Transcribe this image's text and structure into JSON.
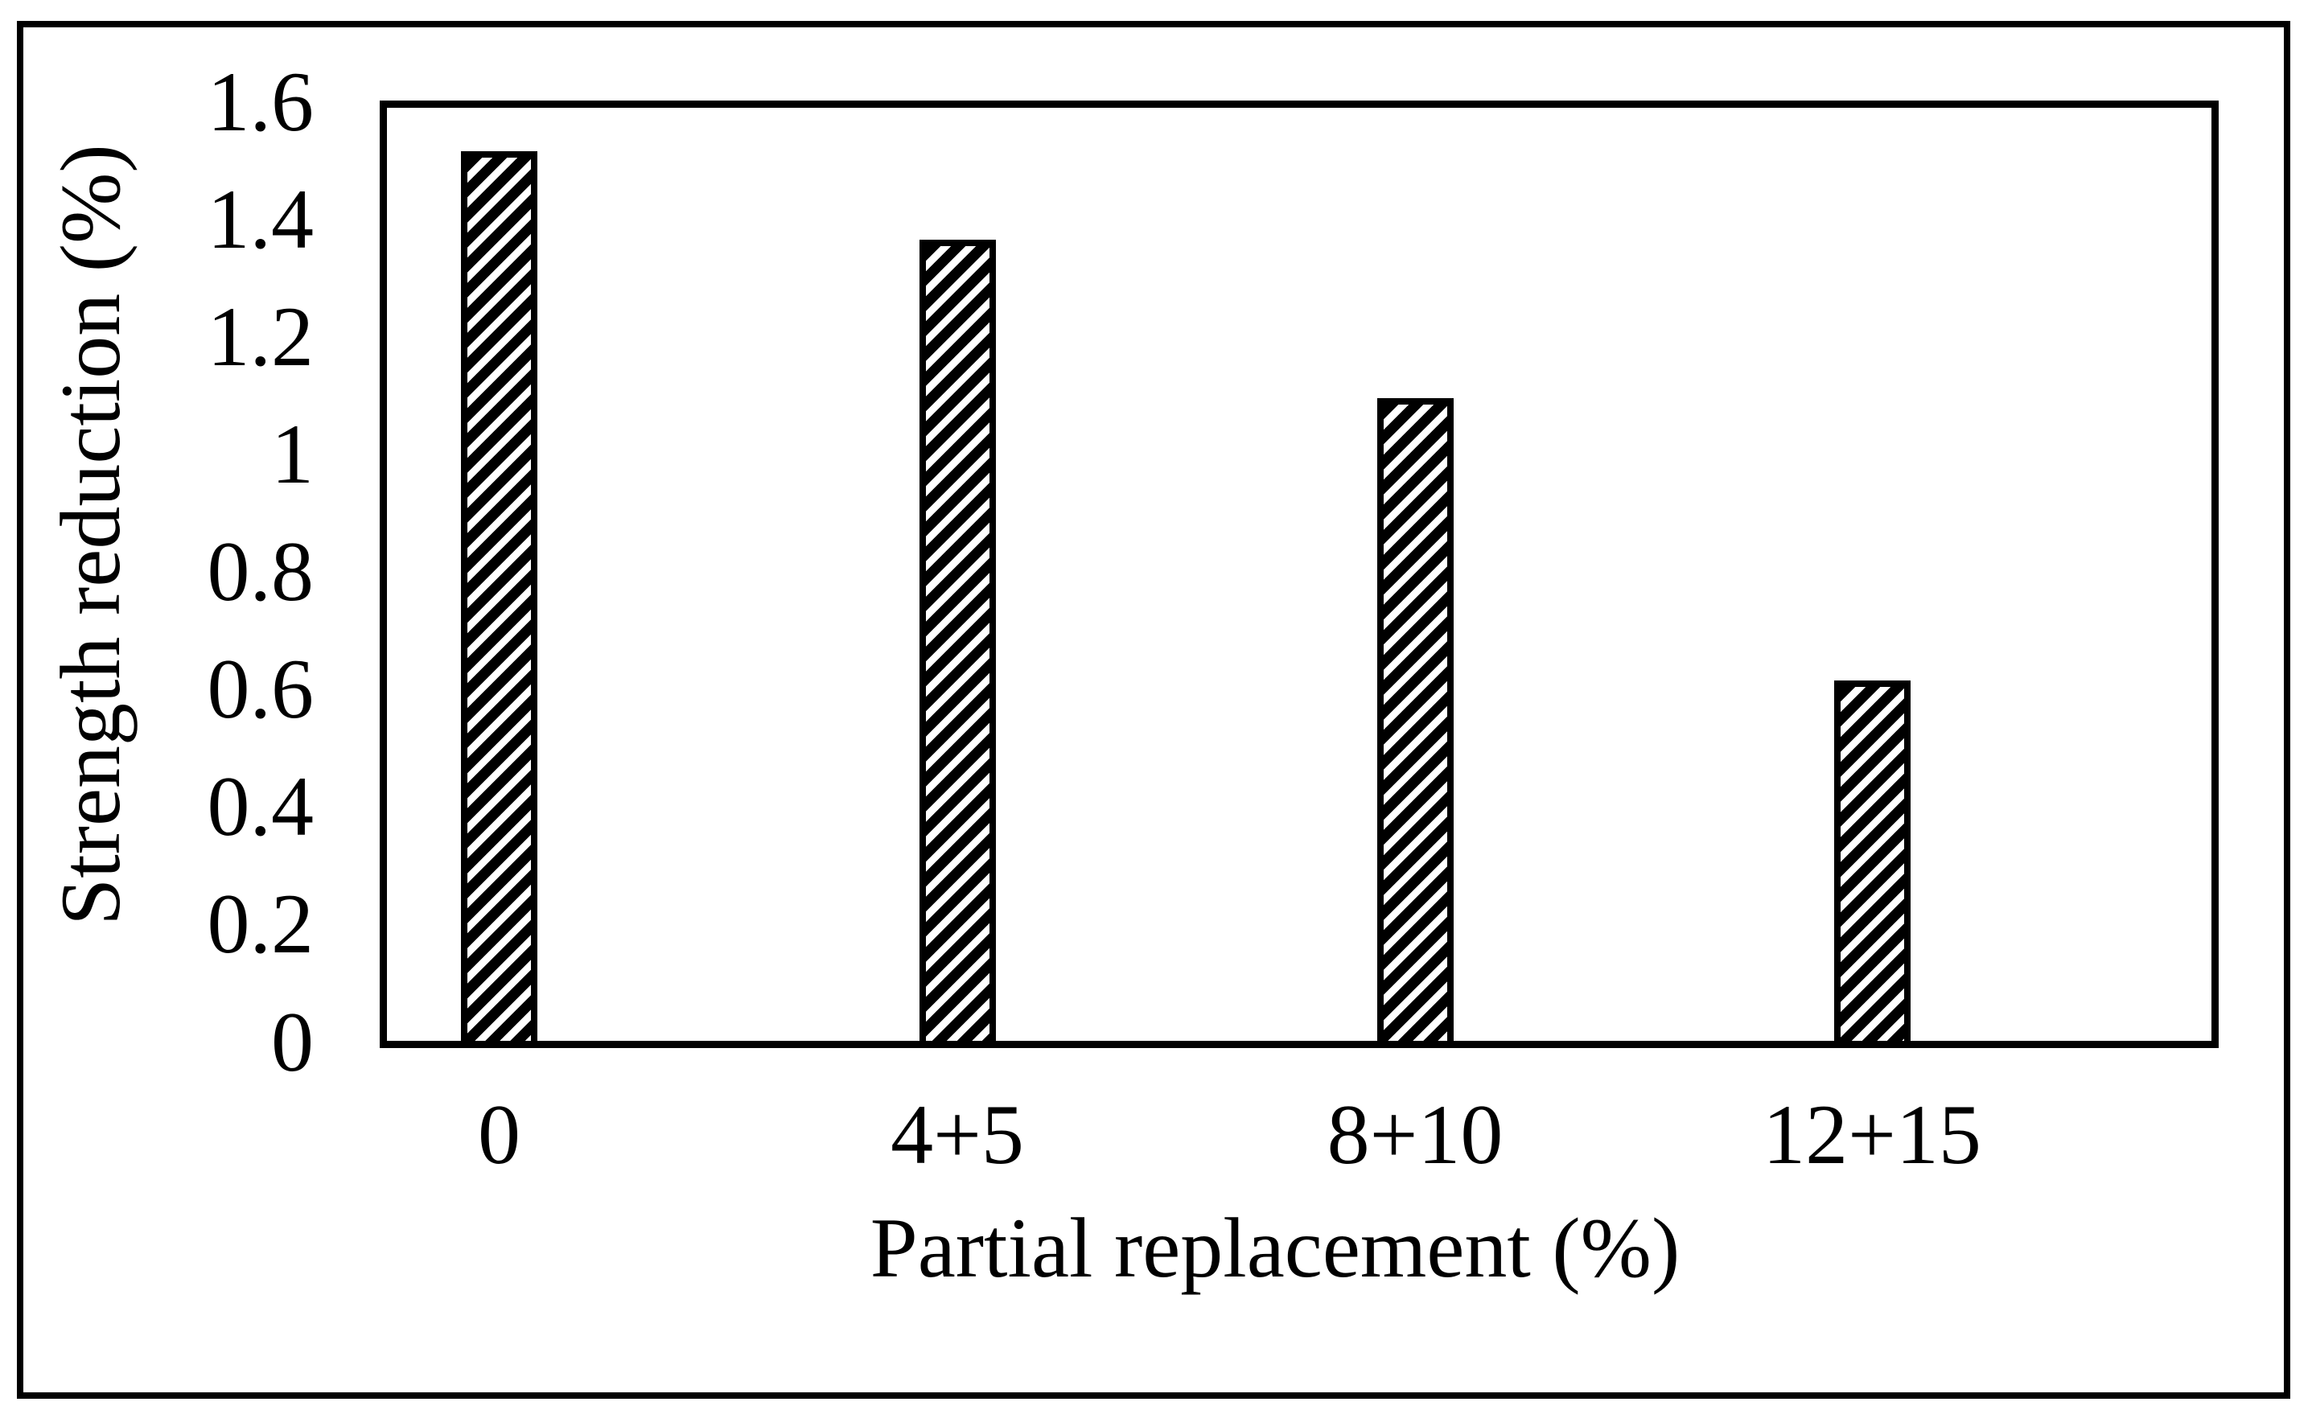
{
  "chart_data": {
    "type": "bar",
    "title": "",
    "categories": [
      "0",
      "4+5",
      "8+10",
      "12+15"
    ],
    "values": [
      1.52,
      1.37,
      1.1,
      0.62
    ],
    "xlabel": "Partial replacement (%)",
    "ylabel": "Strength reduction (%)",
    "ylim": [
      0,
      1.6
    ],
    "ytick_labels": [
      "0",
      "0.2",
      "0.4",
      "0.6",
      "0.8",
      "1",
      "1.2",
      "1.4",
      "1.6"
    ],
    "grid": "off",
    "legend": "none",
    "bar_style": "diagonal-hatch",
    "colors": {
      "foreground": "#000000",
      "background": "#ffffff"
    }
  }
}
